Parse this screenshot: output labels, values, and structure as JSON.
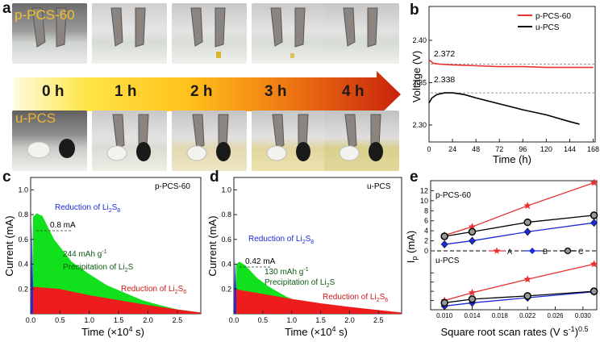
{
  "panel_a": {
    "label": "a",
    "top_sample": "p-PCS-60",
    "bottom_sample": "u-PCS",
    "times": [
      "0 h",
      "1 h",
      "2 h",
      "3 h",
      "4 h"
    ]
  },
  "panel_b": {
    "label": "b",
    "ylabel": "Voltage (V)",
    "xlabel": "Time (h)",
    "legend": [
      "p-PCS-60",
      "u-PCS"
    ],
    "annotations": [
      "2.372",
      "2.338"
    ]
  },
  "panel_c": {
    "label": "c",
    "sample": "p-PCS-60",
    "peak_label": "0.8 mA",
    "notes": {
      "reduction_s8_prefix": "Reduction of Li",
      "reduction_s8_sub": "2",
      "reduction_s8_mid": "S",
      "reduction_s8_sub2": "8",
      "capacity": "244 mAh g",
      "capacity_sup": "-1",
      "precip_prefix": "Precipitation of Li",
      "precip_sub": "2",
      "precip_suffix": "S",
      "reduction_s6_prefix": "Reduction of Li",
      "reduction_s6_sub": "2",
      "reduction_s6_mid": "S",
      "reduction_s6_sub2": "6"
    }
  },
  "panel_d": {
    "label": "d",
    "sample": "u-PCS",
    "peak_label": "0.42 mA",
    "notes": {
      "capacity": "130 mAh g",
      "capacity_sup": "-1"
    }
  },
  "panel_e": {
    "label": "e",
    "top_title": "p-PCS-60",
    "bottom_title": "u-PCS",
    "ylabel_main": "I",
    "ylabel_sub": "p",
    "ylabel_unit": " (mA)",
    "xlabel": "Square root scan rates (V s",
    "xlabel_sup": "-1",
    "xlabel_sup2": "0.5",
    "xlabel_close": ")",
    "legend": [
      "A",
      "B",
      "C"
    ]
  },
  "chart_data": [
    {
      "type": "line",
      "title": "",
      "xlabel": "Time (h)",
      "ylabel": "Voltage (V)",
      "xlim": [
        0,
        170
      ],
      "ylim": [
        2.28,
        2.44
      ],
      "xticks": [
        "0",
        "24",
        "48",
        "72",
        "96",
        "120",
        "144",
        "168"
      ],
      "yticks": [
        "2.30",
        "2.35",
        "2.40"
      ],
      "series": [
        {
          "name": "p-PCS-60",
          "color": "#e8312f",
          "x": [
            0,
            4,
            10,
            24,
            48,
            72,
            96,
            120,
            144,
            168
          ],
          "y": [
            2.377,
            2.373,
            2.372,
            2.371,
            2.37,
            2.369,
            2.369,
            2.368,
            2.368,
            2.368
          ]
        },
        {
          "name": "u-PCS",
          "color": "#000000",
          "x": [
            0,
            3,
            8,
            16,
            24,
            36,
            48,
            72,
            96,
            120,
            144,
            154
          ],
          "y": [
            2.326,
            2.332,
            2.336,
            2.338,
            2.338,
            2.336,
            2.332,
            2.325,
            2.318,
            2.312,
            2.304,
            2.301
          ]
        }
      ],
      "reference_lines": [
        2.372,
        2.338
      ]
    },
    {
      "type": "area",
      "title": "p-PCS-60",
      "xlabel": "Time (×10⁴ s)",
      "ylabel": "Current (mA)",
      "xlim": [
        0,
        2.9
      ],
      "ylim": [
        0,
        1.1
      ],
      "xticks": [
        "0.0",
        "0.5",
        "1.0",
        "1.5",
        "2.0",
        "2.5"
      ],
      "yticks": [
        "0.2",
        "0.4",
        "0.6",
        "0.8",
        "1.0"
      ],
      "series": [
        {
          "name": "Reduction of Li2S8",
          "color": "#1c2bd6",
          "x": [
            0.0,
            0.02,
            0.04
          ],
          "y": [
            0.0,
            0.75,
            0.25
          ]
        },
        {
          "name": "Precipitation of Li2S",
          "color": "#11e01d",
          "x": [
            0.04,
            0.1,
            0.2,
            0.4,
            0.7,
            1.0,
            1.3,
            1.6,
            1.9,
            2.2,
            2.5,
            2.9
          ],
          "y": [
            0.78,
            0.81,
            0.79,
            0.6,
            0.42,
            0.32,
            0.23,
            0.17,
            0.11,
            0.07,
            0.035,
            0.01
          ]
        },
        {
          "name": "Reduction of Li2S6",
          "color": "#ee1c1c",
          "x": [
            0.0,
            0.5,
            1.0,
            1.5,
            2.0,
            2.5,
            2.9
          ],
          "y": [
            0.22,
            0.2,
            0.15,
            0.11,
            0.07,
            0.035,
            0.01
          ]
        }
      ],
      "annotations": [
        "0.8 mA",
        "244 mAh g-1"
      ]
    },
    {
      "type": "area",
      "title": "u-PCS",
      "xlabel": "Time (×10⁴ s)",
      "ylabel": "Current (mA)",
      "xlim": [
        0,
        2.9
      ],
      "ylim": [
        0,
        1.1
      ],
      "xticks": [
        "0.0",
        "0.5",
        "1.0",
        "1.5",
        "2.0",
        "2.5"
      ],
      "yticks": [
        "0.2",
        "0.4",
        "0.6",
        "0.8",
        "1.0"
      ],
      "series": [
        {
          "name": "Reduction of Li2S8",
          "color": "#1c2bd6",
          "x": [
            0.0,
            0.02,
            0.04
          ],
          "y": [
            0.0,
            0.45,
            0.2
          ]
        },
        {
          "name": "Precipitation of Li2S",
          "color": "#11e01d",
          "x": [
            0.04,
            0.1,
            0.2,
            0.4,
            0.6,
            0.9,
            1.2,
            1.5
          ],
          "y": [
            0.4,
            0.42,
            0.39,
            0.29,
            0.22,
            0.14,
            0.08,
            0.04
          ]
        },
        {
          "name": "Reduction of Li2S6",
          "color": "#ee1c1c",
          "x": [
            0.0,
            0.5,
            1.0,
            1.5,
            2.0,
            2.5,
            2.9
          ],
          "y": [
            0.2,
            0.16,
            0.12,
            0.085,
            0.055,
            0.03,
            0.01
          ]
        }
      ],
      "annotations": [
        "0.42 mA",
        "130 mAh g-1"
      ]
    },
    {
      "type": "line",
      "title": "",
      "xlabel": "Square root scan rates (V s-1)0.5",
      "ylabel": "Ip (mA)",
      "xlim": [
        0.008,
        0.032
      ],
      "xticks": [
        "0.010",
        "0.014",
        "0.018",
        "0.022",
        "0.026",
        "0.030"
      ],
      "yticks": [
        "0",
        "2",
        "4",
        "6",
        "8",
        "10",
        "12"
      ],
      "series": [
        {
          "name": "A (p-PCS-60)",
          "color": "#e8312f",
          "marker": "star",
          "x": [
            0.01,
            0.014,
            0.022,
            0.0316
          ],
          "y": [
            3.1,
            4.8,
            9.0,
            13.6
          ]
        },
        {
          "name": "B (p-PCS-60)",
          "color": "#1c2bd6",
          "marker": "diamond",
          "x": [
            0.01,
            0.014,
            0.022,
            0.0316
          ],
          "y": [
            1.3,
            2.0,
            3.8,
            5.6
          ]
        },
        {
          "name": "C (p-PCS-60)",
          "color": "#000000",
          "marker": "circle",
          "x": [
            0.01,
            0.014,
            0.022,
            0.0316
          ],
          "y": [
            2.9,
            3.8,
            5.7,
            7.1
          ]
        },
        {
          "name": "A (u-PCS)",
          "color": "#e8312f",
          "marker": "star",
          "x": [
            0.01,
            0.014,
            0.022,
            0.0316
          ],
          "y": [
            2.0,
            3.7,
            6.6,
            9.9
          ]
        },
        {
          "name": "B (u-PCS)",
          "color": "#1c2bd6",
          "marker": "diamond",
          "x": [
            0.01,
            0.014,
            0.022,
            0.0316
          ],
          "y": [
            0.8,
            1.5,
            2.6,
            3.9
          ]
        },
        {
          "name": "C (u-PCS)",
          "color": "#000000",
          "marker": "circle",
          "x": [
            0.01,
            0.014,
            0.022,
            0.0316
          ],
          "y": [
            1.5,
            2.3,
            3.0,
            4.0
          ]
        }
      ]
    }
  ]
}
